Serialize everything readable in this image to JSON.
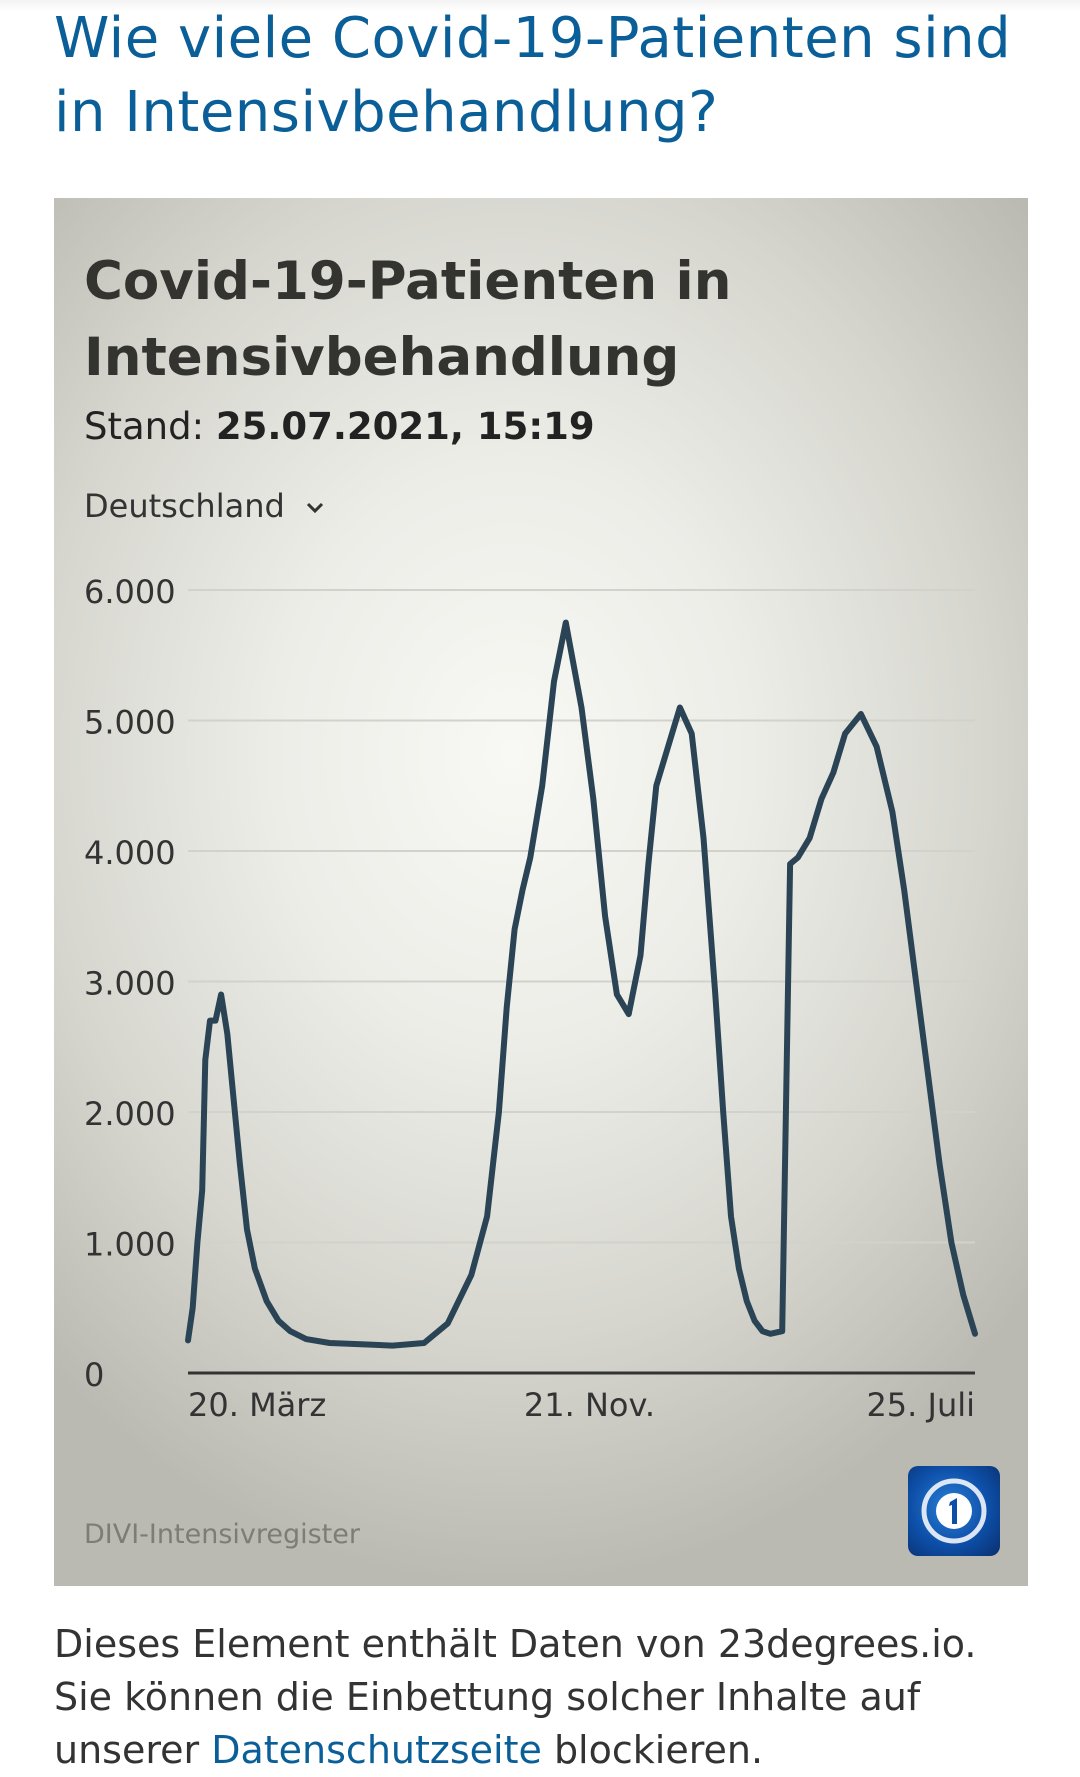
{
  "article": {
    "heading": "Wie viele Covid-19-Patienten sind in Intensivbehandlung?"
  },
  "widget": {
    "title": "Covid-19-Patienten in Intensivbehandlung",
    "stand_label": "Stand:",
    "stand_value": "25.07.2021, 15:19",
    "region_select": "Deutschland",
    "source": "DIVI-Intensivregister",
    "logo_icon": "ard-tagesschau-logo-icon"
  },
  "chart_data": {
    "type": "line",
    "title": "",
    "xlabel": "",
    "ylabel": "",
    "ylim": [
      0,
      6000
    ],
    "yticks": [
      0,
      1000,
      2000,
      3000,
      4000,
      5000,
      6000
    ],
    "ytick_labels": [
      "0",
      "1.000",
      "2.000",
      "3.000",
      "4.000",
      "5.000",
      "6.000"
    ],
    "xtick_labels": [
      "20. März",
      "21. Nov.",
      "25. Juli"
    ],
    "grid": true,
    "line_color": "#2b4455",
    "series": [
      {
        "x": [
          0,
          0.006,
          0.012,
          0.018,
          0.022,
          0.028,
          0.035,
          0.042,
          0.05,
          0.058,
          0.066,
          0.075,
          0.085,
          0.1,
          0.115,
          0.13,
          0.15,
          0.18,
          0.22,
          0.26,
          0.3,
          0.33,
          0.36,
          0.38,
          0.395,
          0.405,
          0.415,
          0.425,
          0.435,
          0.45,
          0.465,
          0.48,
          0.5,
          0.515,
          0.53,
          0.545,
          0.56,
          0.575,
          0.585,
          0.595,
          0.61,
          0.625,
          0.64,
          0.655,
          0.67,
          0.68,
          0.69,
          0.7,
          0.71,
          0.72,
          0.73,
          0.74,
          0.755,
          0.765,
          0.775,
          0.79,
          0.805,
          0.82,
          0.835,
          0.855,
          0.875,
          0.895,
          0.91,
          0.925,
          0.94,
          0.955,
          0.97,
          0.985,
          1.0
        ],
        "y": [
          250,
          500,
          1000,
          1400,
          2400,
          2700,
          2700,
          2900,
          2600,
          2100,
          1600,
          1100,
          800,
          550,
          400,
          320,
          260,
          230,
          220,
          210,
          230,
          380,
          750,
          1200,
          2000,
          2800,
          3400,
          3700,
          3950,
          4500,
          5300,
          5750,
          5100,
          4400,
          3500,
          2900,
          2750,
          3200,
          3900,
          4500,
          4800,
          5100,
          4900,
          4100,
          2900,
          2000,
          1200,
          800,
          550,
          400,
          320,
          300,
          320,
          3900,
          3950,
          4100,
          4400,
          4600,
          4900,
          5050,
          4800,
          4300,
          3700,
          3000,
          2300,
          1600,
          1000,
          600,
          300
        ]
      }
    ]
  },
  "notice": {
    "text_before": "Dieses Element enthält Daten von 23degrees.io. Sie können die Einbettung solcher Inhalte auf unserer ",
    "link_text": "Datenschutzseite",
    "text_after": " blockieren."
  }
}
